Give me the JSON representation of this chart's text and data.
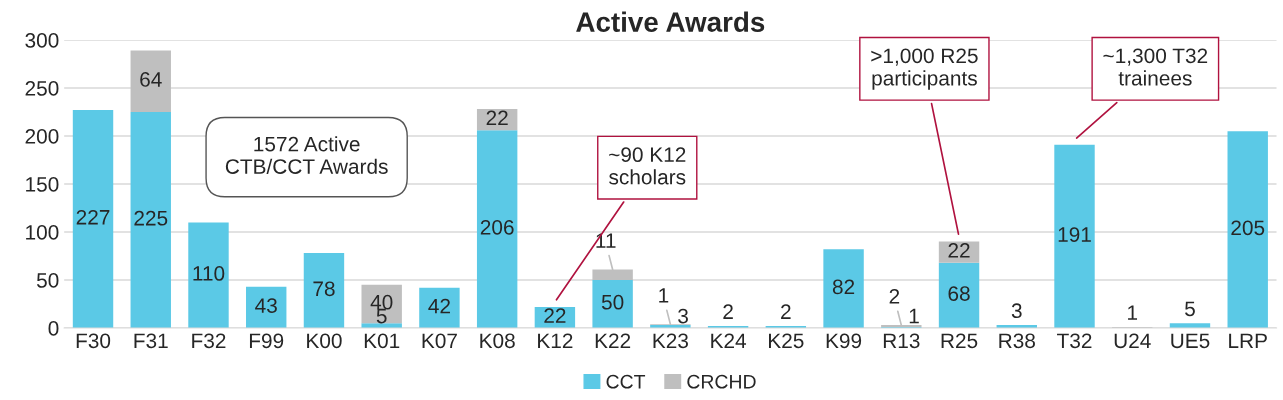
{
  "chart_data": {
    "type": "bar",
    "title": "Active Awards",
    "stacked": true,
    "categories": [
      "F30",
      "F31",
      "F32",
      "F99",
      "K00",
      "K01",
      "K07",
      "K08",
      "K12",
      "K22",
      "K23",
      "K24",
      "K25",
      "K99",
      "R13",
      "R25",
      "R38",
      "T32",
      "U24",
      "UE5",
      "LRP"
    ],
    "series": [
      {
        "name": "CCT",
        "color": "#5bc9e6",
        "values": [
          227,
          225,
          110,
          43,
          78,
          5,
          42,
          206,
          22,
          50,
          3,
          2,
          2,
          82,
          1,
          68,
          3,
          191,
          null,
          5,
          205
        ]
      },
      {
        "name": "CRCHD",
        "color": "#bfbfbf",
        "values": [
          null,
          64,
          null,
          null,
          null,
          40,
          null,
          22,
          null,
          11,
          1,
          null,
          null,
          null,
          2,
          22,
          null,
          null,
          1,
          null,
          null
        ]
      }
    ],
    "ylim": [
      0,
      300
    ],
    "yticks": [
      0,
      50,
      100,
      150,
      200,
      250,
      300
    ],
    "grid": "y",
    "legend": "bottom",
    "data_labels": true,
    "annotations": [
      "1572 Active\nCTB/CCT Awards",
      {
        "text": "~90 K12\nscholars",
        "x": "K12",
        "y": 22
      },
      {
        "text": ">1,000 R25\nparticipants",
        "x": "R25",
        "y": 90
      },
      {
        "text": "~1,300 T32\ntrainees",
        "x": "T32",
        "y": 191
      }
    ]
  }
}
